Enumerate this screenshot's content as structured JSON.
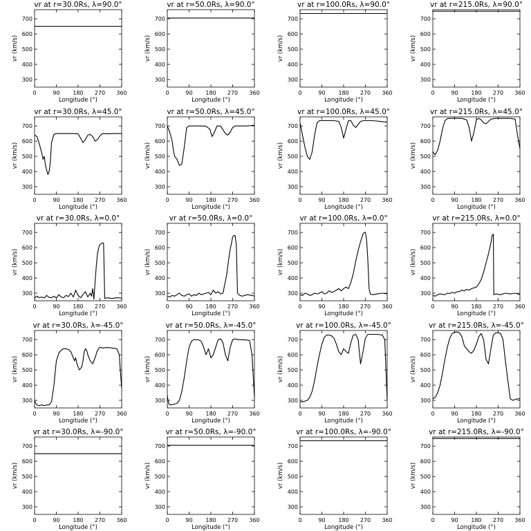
{
  "figure": {
    "rows": 5,
    "cols": 4,
    "xlabel": "Longitude (°)",
    "ylabel": "vr (km/s)",
    "xticks": [
      "0",
      "90",
      "180",
      "270",
      "360"
    ],
    "yticks": [
      "300",
      "400",
      "500",
      "600",
      "700"
    ],
    "line_color": "#000000"
  },
  "chart_data": [
    {
      "type": "line",
      "title": "vr at r=30.0Rs, λ=90.0°",
      "xlim": [
        0,
        360
      ],
      "ylim": [
        250,
        760
      ],
      "x": [
        0,
        360
      ],
      "y": [
        650,
        650
      ]
    },
    {
      "type": "line",
      "title": "vr at r=50.0Rs, λ=90.0°",
      "xlim": [
        0,
        360
      ],
      "ylim": [
        250,
        760
      ],
      "x": [
        0,
        360
      ],
      "y": [
        705,
        705
      ]
    },
    {
      "type": "line",
      "title": "vr at r=100.0Rs, λ=90.0°",
      "xlim": [
        0,
        360
      ],
      "ylim": [
        250,
        760
      ],
      "x": [
        0,
        360
      ],
      "y": [
        735,
        735
      ]
    },
    {
      "type": "line",
      "title": "vr at r=215.0Rs, λ=90.0°",
      "xlim": [
        0,
        360
      ],
      "ylim": [
        250,
        760
      ],
      "x": [
        0,
        360
      ],
      "y": [
        750,
        750
      ]
    },
    {
      "type": "line",
      "title": "vr at r=30.0Rs, λ=45.0°",
      "xlim": [
        0,
        360
      ],
      "ylim": [
        250,
        760
      ],
      "x": [
        0,
        10,
        20,
        30,
        35,
        40,
        45,
        50,
        55,
        60,
        65,
        70,
        80,
        90,
        100,
        120,
        140,
        160,
        180,
        190,
        200,
        210,
        220,
        230,
        240,
        250,
        260,
        270,
        280,
        300,
        330,
        360
      ],
      "y": [
        640,
        630,
        580,
        520,
        480,
        500,
        440,
        410,
        380,
        400,
        460,
        590,
        645,
        650,
        650,
        650,
        650,
        650,
        648,
        620,
        590,
        610,
        640,
        645,
        630,
        600,
        610,
        635,
        650,
        648,
        650,
        650
      ]
    },
    {
      "type": "line",
      "title": "vr at r=50.0Rs, λ=45.0°",
      "xlim": [
        0,
        360
      ],
      "ylim": [
        250,
        760
      ],
      "x": [
        0,
        10,
        20,
        25,
        30,
        40,
        50,
        60,
        70,
        80,
        90,
        100,
        120,
        140,
        160,
        175,
        185,
        195,
        205,
        220,
        240,
        250,
        260,
        270,
        280,
        300,
        330,
        360
      ],
      "y": [
        700,
        660,
        600,
        540,
        500,
        480,
        440,
        450,
        560,
        690,
        700,
        700,
        700,
        700,
        698,
        680,
        630,
        660,
        700,
        700,
        650,
        640,
        660,
        690,
        700,
        700,
        700,
        705
      ]
    },
    {
      "type": "line",
      "title": "vr at r=100.0Rs, λ=45.0°",
      "xlim": [
        0,
        360
      ],
      "ylim": [
        250,
        760
      ],
      "x": [
        0,
        10,
        20,
        30,
        40,
        50,
        60,
        70,
        80,
        90,
        100,
        120,
        140,
        160,
        170,
        180,
        190,
        200,
        210,
        220,
        230,
        240,
        250,
        260,
        280,
        300,
        330,
        360
      ],
      "y": [
        720,
        640,
        560,
        500,
        480,
        530,
        640,
        720,
        735,
        735,
        735,
        735,
        735,
        730,
        690,
        620,
        680,
        735,
        735,
        705,
        690,
        710,
        730,
        735,
        735,
        735,
        730,
        725
      ]
    },
    {
      "type": "line",
      "title": "vr at r=215.0Rs, λ=45.0°",
      "xlim": [
        0,
        360
      ],
      "ylim": [
        250,
        760
      ],
      "x": [
        0,
        10,
        20,
        30,
        40,
        50,
        60,
        70,
        80,
        100,
        120,
        140,
        150,
        160,
        170,
        180,
        190,
        200,
        210,
        220,
        230,
        240,
        260,
        280,
        300,
        320,
        340,
        350,
        360
      ],
      "y": [
        530,
        510,
        540,
        600,
        680,
        735,
        748,
        750,
        750,
        750,
        750,
        740,
        690,
        600,
        660,
        740,
        750,
        740,
        720,
        715,
        730,
        745,
        750,
        750,
        750,
        750,
        745,
        640,
        550
      ]
    },
    {
      "type": "line",
      "title": "vr at r=30.0Rs, λ=0.0°",
      "xlim": [
        0,
        360
      ],
      "ylim": [
        250,
        760
      ],
      "x": [
        0,
        10,
        20,
        30,
        40,
        50,
        60,
        70,
        80,
        90,
        100,
        110,
        120,
        130,
        140,
        150,
        160,
        170,
        180,
        190,
        200,
        210,
        220,
        230,
        235,
        240,
        245,
        250,
        255,
        260,
        265,
        270,
        275,
        280,
        285,
        290,
        300,
        320,
        340,
        360
      ],
      "y": [
        270,
        280,
        270,
        275,
        268,
        285,
        272,
        270,
        280,
        268,
        290,
        275,
        270,
        285,
        278,
        300,
        275,
        320,
        285,
        270,
        290,
        310,
        275,
        300,
        280,
        330,
        260,
        370,
        480,
        560,
        600,
        620,
        625,
        630,
        630,
        265,
        270,
        265,
        270,
        268
      ]
    },
    {
      "type": "line",
      "title": "vr at r=50.0Rs, λ=0.0°",
      "xlim": [
        0,
        360
      ],
      "ylim": [
        250,
        760
      ],
      "x": [
        0,
        10,
        20,
        30,
        40,
        50,
        60,
        70,
        80,
        90,
        100,
        110,
        120,
        130,
        140,
        150,
        160,
        170,
        180,
        190,
        200,
        210,
        220,
        230,
        240,
        245,
        250,
        255,
        260,
        265,
        270,
        275,
        280,
        285,
        290,
        300,
        310,
        330,
        350,
        360
      ],
      "y": [
        280,
        275,
        285,
        280,
        290,
        300,
        285,
        280,
        290,
        295,
        280,
        290,
        285,
        300,
        290,
        295,
        300,
        305,
        290,
        320,
        300,
        310,
        295,
        300,
        380,
        420,
        480,
        540,
        590,
        630,
        670,
        680,
        680,
        620,
        300,
        285,
        280,
        290,
        285,
        280
      ]
    },
    {
      "type": "line",
      "title": "vr at r=100.0Rs, λ=0.0°",
      "xlim": [
        0,
        360
      ],
      "ylim": [
        250,
        760
      ],
      "x": [
        0,
        10,
        20,
        30,
        40,
        50,
        60,
        70,
        80,
        90,
        100,
        110,
        120,
        130,
        140,
        150,
        160,
        170,
        180,
        190,
        200,
        210,
        220,
        230,
        240,
        250,
        260,
        265,
        270,
        275,
        280,
        285,
        290,
        300,
        320,
        340,
        360
      ],
      "y": [
        290,
        285,
        300,
        295,
        285,
        290,
        300,
        295,
        300,
        310,
        295,
        300,
        315,
        305,
        310,
        320,
        330,
        315,
        330,
        340,
        330,
        370,
        430,
        510,
        580,
        640,
        690,
        700,
        700,
        650,
        520,
        330,
        295,
        290,
        295,
        300,
        295
      ]
    },
    {
      "type": "line",
      "title": "vr at r=215.0Rs, λ=0.0°",
      "xlim": [
        0,
        360
      ],
      "ylim": [
        250,
        760
      ],
      "x": [
        0,
        10,
        20,
        30,
        40,
        50,
        60,
        70,
        80,
        90,
        100,
        110,
        120,
        130,
        140,
        150,
        160,
        170,
        180,
        190,
        200,
        210,
        220,
        230,
        240,
        245,
        250,
        252,
        260,
        280,
        300,
        320,
        340,
        360
      ],
      "y": [
        285,
        280,
        290,
        295,
        292,
        290,
        300,
        298,
        305,
        300,
        310,
        310,
        320,
        315,
        325,
        320,
        330,
        335,
        340,
        360,
        390,
        440,
        500,
        560,
        630,
        680,
        690,
        290,
        295,
        290,
        300,
        295,
        300,
        290
      ]
    },
    {
      "type": "line",
      "title": "vr at r=30.0Rs, λ=-45.0°",
      "xlim": [
        0,
        360
      ],
      "ylim": [
        250,
        760
      ],
      "x": [
        0,
        5,
        10,
        20,
        30,
        40,
        50,
        60,
        70,
        80,
        90,
        100,
        110,
        120,
        130,
        140,
        150,
        160,
        165,
        170,
        175,
        180,
        185,
        190,
        195,
        200,
        205,
        210,
        215,
        220,
        230,
        240,
        250,
        260,
        270,
        280,
        300,
        320,
        340,
        350,
        355,
        360
      ],
      "y": [
        300,
        280,
        270,
        265,
        270,
        265,
        270,
        270,
        290,
        400,
        560,
        610,
        630,
        640,
        640,
        635,
        620,
        580,
        560,
        580,
        540,
        520,
        500,
        510,
        520,
        560,
        620,
        640,
        630,
        600,
        560,
        540,
        580,
        630,
        650,
        645,
        648,
        645,
        640,
        600,
        480,
        380
      ]
    },
    {
      "type": "line",
      "title": "vr at r=50.0Rs, λ=-45.0°",
      "xlim": [
        0,
        360
      ],
      "ylim": [
        250,
        760
      ],
      "x": [
        0,
        5,
        10,
        20,
        30,
        40,
        50,
        60,
        70,
        80,
        90,
        100,
        110,
        120,
        130,
        140,
        150,
        160,
        170,
        180,
        190,
        200,
        210,
        220,
        230,
        240,
        250,
        260,
        270,
        280,
        290,
        300,
        320,
        340,
        350,
        360
      ],
      "y": [
        330,
        280,
        270,
        272,
        275,
        280,
        300,
        360,
        450,
        560,
        650,
        690,
        700,
        700,
        698,
        690,
        650,
        600,
        640,
        580,
        600,
        650,
        700,
        705,
        680,
        600,
        560,
        650,
        700,
        705,
        700,
        700,
        698,
        695,
        600,
        320
      ]
    },
    {
      "type": "line",
      "title": "vr at r=100.0Rs, λ=-45.0°",
      "xlim": [
        0,
        360
      ],
      "ylim": [
        250,
        760
      ],
      "x": [
        0,
        10,
        20,
        30,
        40,
        50,
        60,
        70,
        80,
        90,
        100,
        110,
        120,
        130,
        140,
        150,
        160,
        170,
        180,
        190,
        200,
        210,
        220,
        230,
        240,
        250,
        260,
        270,
        280,
        290,
        300,
        320,
        340,
        350,
        360
      ],
      "y": [
        290,
        290,
        295,
        300,
        320,
        360,
        430,
        520,
        600,
        670,
        715,
        730,
        730,
        725,
        710,
        670,
        620,
        600,
        640,
        620,
        610,
        680,
        730,
        735,
        700,
        540,
        620,
        710,
        735,
        735,
        735,
        735,
        730,
        700,
        300
      ]
    },
    {
      "type": "line",
      "title": "vr at r=215.0Rs, λ=-45.0°",
      "xlim": [
        0,
        360
      ],
      "ylim": [
        250,
        760
      ],
      "x": [
        0,
        10,
        20,
        30,
        40,
        50,
        60,
        70,
        80,
        90,
        100,
        110,
        120,
        130,
        140,
        150,
        160,
        170,
        180,
        190,
        200,
        210,
        220,
        230,
        240,
        250,
        260,
        270,
        280,
        290,
        300,
        310,
        320,
        330,
        340,
        350,
        360
      ],
      "y": [
        310,
        320,
        350,
        400,
        480,
        570,
        650,
        710,
        740,
        748,
        750,
        745,
        720,
        660,
        640,
        620,
        610,
        630,
        670,
        720,
        740,
        700,
        570,
        540,
        640,
        730,
        745,
        745,
        740,
        700,
        560,
        430,
        310,
        300,
        305,
        310,
        310
      ]
    },
    {
      "type": "line",
      "title": "vr at r=30.0Rs, λ=-90.0°",
      "xlim": [
        0,
        360
      ],
      "ylim": [
        250,
        760
      ],
      "x": [
        0,
        360
      ],
      "y": [
        650,
        650
      ]
    },
    {
      "type": "line",
      "title": "vr at r=50.0Rs, λ=-90.0°",
      "xlim": [
        0,
        360
      ],
      "ylim": [
        250,
        760
      ],
      "x": [
        0,
        360
      ],
      "y": [
        705,
        705
      ]
    },
    {
      "type": "line",
      "title": "vr at r=100.0Rs, λ=-90.0°",
      "xlim": [
        0,
        360
      ],
      "ylim": [
        250,
        760
      ],
      "x": [
        0,
        360
      ],
      "y": [
        735,
        735
      ]
    },
    {
      "type": "line",
      "title": "vr at r=215.0Rs, λ=-90.0°",
      "xlim": [
        0,
        360
      ],
      "ylim": [
        250,
        760
      ],
      "x": [
        0,
        360
      ],
      "y": [
        750,
        750
      ]
    }
  ]
}
